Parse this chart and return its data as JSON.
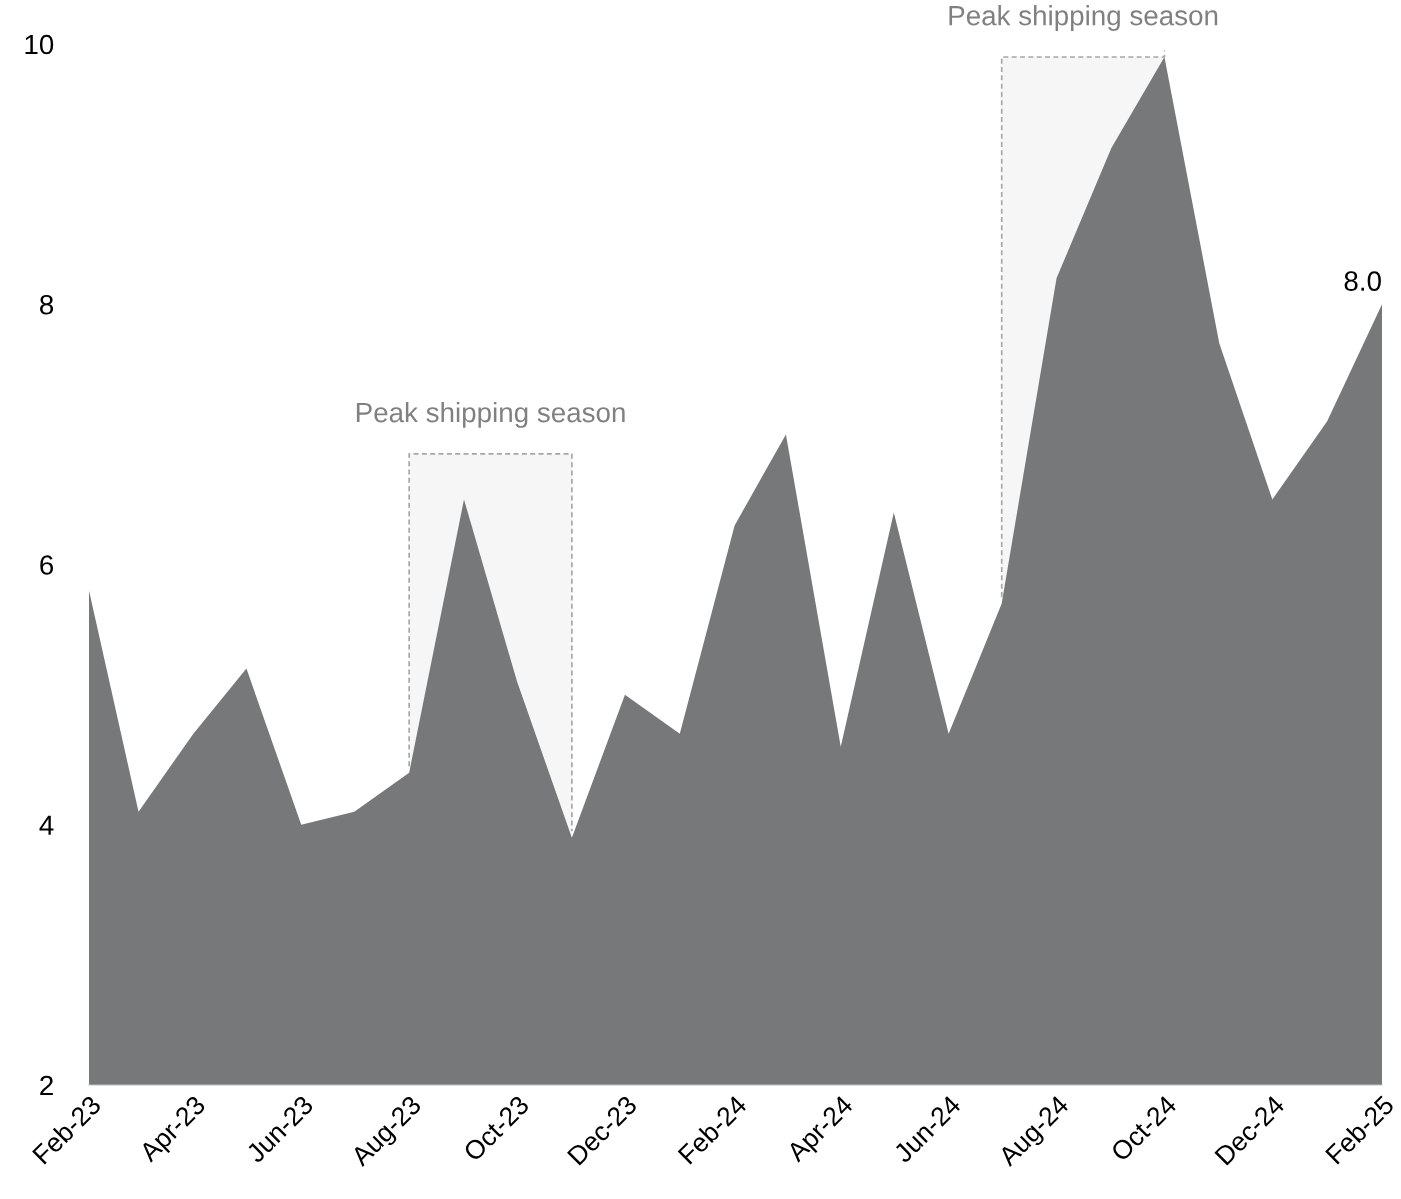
{
  "chart_data": {
    "type": "area",
    "x": [
      "2023-02",
      "2023-03",
      "2023-04",
      "2023-05",
      "2023-06",
      "2023-07",
      "2023-08",
      "2023-09",
      "2023-10",
      "2023-11",
      "2023-12",
      "2024-01",
      "2024-02",
      "2024-03",
      "2024-04",
      "2024-05",
      "2024-06",
      "2024-07",
      "2024-08",
      "2024-09",
      "2024-10",
      "2024-11",
      "2024-12",
      "2025-01",
      "2025-02"
    ],
    "series": [
      {
        "color": "#77787a",
        "values": [
          5.8,
          4.1,
          4.7,
          5.2,
          4.0,
          4.1,
          4.4,
          6.5,
          5.1,
          3.9,
          5.0,
          4.7,
          6.3,
          7.0,
          4.6,
          6.4,
          4.7,
          5.7,
          8.2,
          9.2,
          9.9,
          7.7,
          6.5,
          7.1,
          8.0
        ],
        "value_labels": [
          null,
          null,
          null,
          null,
          null,
          null,
          null,
          null,
          null,
          null,
          null,
          null,
          null,
          null,
          null,
          null,
          null,
          null,
          null,
          null,
          null,
          null,
          null,
          null,
          "8.0"
        ]
      }
    ],
    "xlim": [
      "2023-02",
      "2025-02"
    ],
    "xticks": [
      {
        "value": "2023-02",
        "label": "Feb-23"
      },
      {
        "value": "2023-04",
        "label": "Apr-23"
      },
      {
        "value": "2023-06",
        "label": "Jun-23"
      },
      {
        "value": "2023-08",
        "label": "Aug-23"
      },
      {
        "value": "2023-10",
        "label": "Oct-23"
      },
      {
        "value": "2023-12",
        "label": "Dec-23"
      },
      {
        "value": "2024-02",
        "label": "Feb-24"
      },
      {
        "value": "2024-04",
        "label": "Apr-24"
      },
      {
        "value": "2024-06",
        "label": "Jun-24"
      },
      {
        "value": "2024-08",
        "label": "Aug-24"
      },
      {
        "value": "2024-10",
        "label": "Oct-24"
      },
      {
        "value": "2024-12",
        "label": "Dec-24"
      },
      {
        "value": "2025-02",
        "label": "Feb-25"
      }
    ],
    "ylim": [
      2,
      10
    ],
    "yticks": [
      2,
      4,
      6,
      8,
      10
    ],
    "grid": false,
    "legend": false,
    "bands": [
      {
        "axis": "x",
        "from": "2023-08",
        "to": "2023-11",
        "label": "Peak shipping season",
        "color": "#a6a6a6"
      },
      {
        "axis": "x",
        "from": "2024-07",
        "to": "2024-10",
        "label": "Peak shipping season",
        "color": "#a6a6a6"
      }
    ]
  }
}
